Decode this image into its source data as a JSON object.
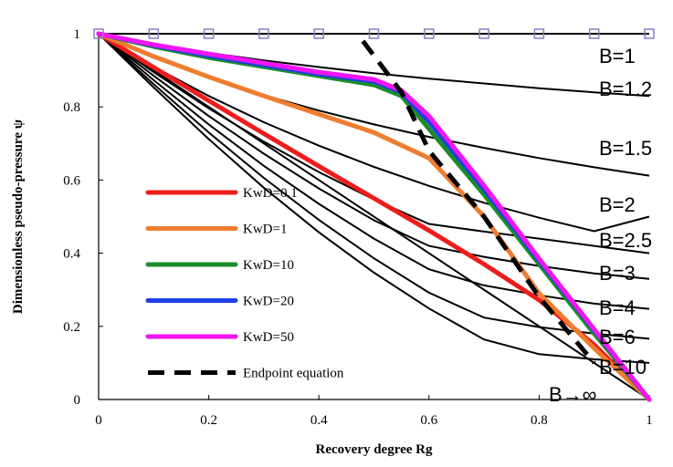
{
  "chart_data": {
    "type": "line",
    "xlabel": "Recovery degree Rg",
    "ylabel": "Dimensionless pseudo-pressure ψ",
    "xlim": [
      0,
      1
    ],
    "ylim": [
      0,
      1
    ],
    "x_ticks": [
      "0",
      "0.2",
      "0.4",
      "0.6",
      "0.8",
      "1"
    ],
    "y_ticks": [
      "0",
      "0.2",
      "0.4",
      "0.6",
      "0.8",
      "1"
    ],
    "grid": false,
    "legend_position": "lower-left",
    "b_curves": [
      {
        "label": "B=1",
        "x": [
          0,
          1
        ],
        "y": [
          1,
          1
        ]
      },
      {
        "label": "B=1.2",
        "x": [
          0,
          0.1,
          0.2,
          0.3,
          0.4,
          0.5,
          0.6,
          0.7,
          0.8,
          0.9,
          1.0
        ],
        "y": [
          1,
          0.97,
          0.948,
          0.927,
          0.909,
          0.892,
          0.877,
          0.864,
          0.851,
          0.84,
          0.83
        ]
      },
      {
        "label": "B=1.5",
        "x": [
          0,
          0.1,
          0.2,
          0.3,
          0.4,
          0.5,
          0.6,
          0.7,
          0.8,
          0.9,
          1.0
        ],
        "y": [
          1,
          0.935,
          0.88,
          0.832,
          0.79,
          0.752,
          0.718,
          0.688,
          0.66,
          0.635,
          0.612
        ]
      },
      {
        "label": "B=2",
        "x": [
          0,
          0.1,
          0.2,
          0.3,
          0.4,
          0.5,
          0.6,
          0.7,
          0.8,
          0.9,
          1.0
        ],
        "y": [
          1,
          0.91,
          0.83,
          0.758,
          0.694,
          0.636,
          0.584,
          0.538,
          0.497,
          0.46,
          0.5
        ]
      },
      {
        "label": "B=2.5",
        "x": [
          0,
          0.1,
          0.2,
          0.3,
          0.4,
          0.5,
          0.6,
          0.7,
          0.8,
          0.9,
          1.0
        ],
        "y": [
          1,
          0.895,
          0.796,
          0.705,
          0.622,
          0.547,
          0.48,
          0.459,
          0.44,
          0.42,
          0.4
        ]
      },
      {
        "label": "B=3",
        "x": [
          0,
          0.1,
          0.2,
          0.3,
          0.4,
          0.5,
          0.6,
          0.7,
          0.8,
          0.9,
          1.0
        ],
        "y": [
          1,
          0.885,
          0.775,
          0.672,
          0.577,
          0.49,
          0.42,
          0.39,
          0.365,
          0.345,
          0.33
        ]
      },
      {
        "label": "B=4",
        "x": [
          0,
          0.1,
          0.2,
          0.3,
          0.4,
          0.5,
          0.6,
          0.7,
          0.8,
          0.9,
          1.0
        ],
        "y": [
          1,
          0.873,
          0.752,
          0.639,
          0.535,
          0.44,
          0.356,
          0.312,
          0.285,
          0.262,
          0.248
        ]
      },
      {
        "label": "B=6",
        "x": [
          0,
          0.1,
          0.2,
          0.3,
          0.4,
          0.5,
          0.6,
          0.7,
          0.8,
          0.9,
          1.0
        ],
        "y": [
          1,
          0.862,
          0.73,
          0.606,
          0.491,
          0.386,
          0.292,
          0.224,
          0.198,
          0.18,
          0.166
        ]
      },
      {
        "label": "B=10",
        "x": [
          0,
          0.1,
          0.2,
          0.3,
          0.4,
          0.5,
          0.6,
          0.7,
          0.8,
          0.9,
          1.0
        ],
        "y": [
          1,
          0.853,
          0.712,
          0.579,
          0.457,
          0.347,
          0.249,
          0.164,
          0.124,
          0.11,
          0.1
        ]
      },
      {
        "label": "B→∞",
        "x": [
          0,
          1
        ],
        "y": [
          1,
          0
        ]
      }
    ],
    "series": [
      {
        "name": "KwD=0.1",
        "color": "#ee1c1c",
        "x": [
          0,
          0.1,
          0.2,
          0.3,
          0.4,
          0.5,
          0.6,
          0.7,
          0.8,
          0.9,
          1.0
        ],
        "y": [
          1,
          0.908,
          0.817,
          0.727,
          0.638,
          0.55,
          0.462,
          0.37,
          0.272,
          0.15,
          0
        ]
      },
      {
        "name": "KwD=1",
        "color": "#ee7d2f",
        "x": [
          0,
          0.1,
          0.2,
          0.3,
          0.4,
          0.5,
          0.6,
          0.7,
          0.8,
          0.9,
          1.0
        ],
        "y": [
          1,
          0.938,
          0.882,
          0.83,
          0.78,
          0.73,
          0.66,
          0.5,
          0.29,
          0.14,
          0
        ]
      },
      {
        "name": "KwD=10",
        "color": "#1c8c2b",
        "x": [
          0,
          0.1,
          0.2,
          0.3,
          0.4,
          0.5,
          0.55,
          0.6,
          0.7,
          0.8,
          0.9,
          1.0
        ],
        "y": [
          1,
          0.965,
          0.935,
          0.91,
          0.885,
          0.86,
          0.83,
          0.74,
          0.56,
          0.37,
          0.18,
          0
        ]
      },
      {
        "name": "KwD=20",
        "color": "#1f3fe6",
        "x": [
          0,
          0.1,
          0.2,
          0.3,
          0.4,
          0.5,
          0.55,
          0.6,
          0.7,
          0.8,
          0.9,
          1.0
        ],
        "y": [
          1,
          0.968,
          0.94,
          0.915,
          0.89,
          0.87,
          0.84,
          0.76,
          0.575,
          0.38,
          0.19,
          0
        ]
      },
      {
        "name": "KwD=50",
        "color": "#f215f2",
        "x": [
          0,
          0.1,
          0.2,
          0.3,
          0.4,
          0.5,
          0.55,
          0.6,
          0.7,
          0.8,
          0.9,
          1.0
        ],
        "y": [
          1,
          0.97,
          0.945,
          0.92,
          0.895,
          0.875,
          0.845,
          0.775,
          0.585,
          0.385,
          0.192,
          0
        ]
      },
      {
        "name": "Endpoint equation",
        "color": "#000000",
        "dashed": true,
        "x": [
          0.48,
          0.55,
          0.6,
          0.7,
          0.8,
          0.9
        ],
        "y": [
          0.98,
          0.84,
          0.68,
          0.5,
          0.28,
          0.1
        ]
      }
    ],
    "top_markers": {
      "x": [
        0,
        0.1,
        0.2,
        0.3,
        0.4,
        0.5,
        0.6,
        0.7,
        0.8,
        0.9,
        1.0
      ],
      "y": 1,
      "color": "#8e7cc3"
    }
  }
}
